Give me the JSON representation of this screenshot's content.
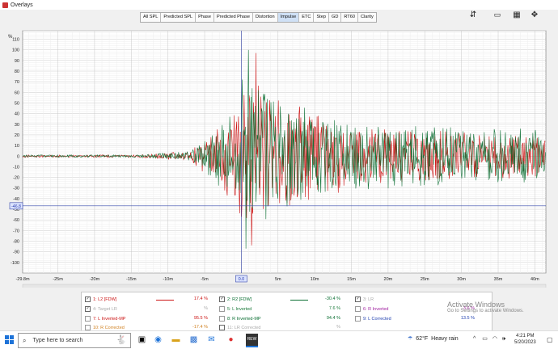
{
  "window": {
    "title": "Overlays"
  },
  "tabs": [
    {
      "label": "All SPL",
      "active": false
    },
    {
      "label": "Predicted SPL",
      "active": false
    },
    {
      "label": "Phase",
      "active": false
    },
    {
      "label": "Predicted Phase",
      "active": false
    },
    {
      "label": "Distortion",
      "active": false
    },
    {
      "label": "Impulse",
      "active": true
    },
    {
      "label": "ETC",
      "active": false
    },
    {
      "label": "Step",
      "active": false
    },
    {
      "label": "GD",
      "active": false
    },
    {
      "label": "RT60",
      "active": false
    },
    {
      "label": "Clarity",
      "active": false
    }
  ],
  "toolbar_icons": [
    "vertical-scale-icon",
    "level-meter-icon",
    "grid-icon",
    "crosshair-icon"
  ],
  "chart_data": {
    "type": "line",
    "ylabel": "%",
    "xlim": [
      -29.8,
      41.5
    ],
    "ylim": [
      -110,
      118
    ],
    "yticks": [
      110,
      100,
      90,
      80,
      70,
      60,
      50,
      40,
      30,
      20,
      10,
      0,
      -10,
      -20,
      -30,
      -40,
      -50,
      -60,
      -70,
      -80,
      -90,
      -100
    ],
    "xticks": [
      {
        "v": -29.8,
        "label": "-29.8m"
      },
      {
        "v": -25,
        "label": "-25m"
      },
      {
        "v": -20,
        "label": "-20m"
      },
      {
        "v": -15,
        "label": "-15m"
      },
      {
        "v": -10,
        "label": "-10m"
      },
      {
        "v": -5,
        "label": "-5m"
      },
      {
        "v": 0,
        "label": "0.0"
      },
      {
        "v": 5,
        "label": "5m"
      },
      {
        "v": 10,
        "label": "10m"
      },
      {
        "v": 15,
        "label": "15m"
      },
      {
        "v": 20,
        "label": "20m"
      },
      {
        "v": 25,
        "label": "25m"
      },
      {
        "v": 30,
        "label": "30m"
      },
      {
        "v": 35,
        "label": "35m"
      },
      {
        "v": 40,
        "label": "40m"
      }
    ],
    "cursor": {
      "x": 0,
      "y": -46.8,
      "y_label": "-46.8"
    },
    "grid": true,
    "series": [
      {
        "name": "1: L2 [FDW]",
        "color": "#cc1414",
        "seed": 7,
        "peak": 97,
        "trough": -84,
        "tail": 27
      },
      {
        "name": "2: R2 [FDW]",
        "color": "#0a6e32",
        "seed": 13,
        "peak": 100,
        "trough": -87,
        "tail": 32
      }
    ]
  },
  "legend": {
    "rows": [
      {
        "check": true,
        "name": "1: L2 [FDW]",
        "color": "#cc1414",
        "pct": "17.4 %",
        "line": true,
        "pct_color": "#cc1414"
      },
      {
        "check": true,
        "name": "2: R2 [FDW]",
        "color": "#0a6e32",
        "pct": "-30.4 %",
        "line": true,
        "pct_color": "#0a6e32"
      },
      {
        "check": true,
        "name": "3: LR",
        "color": "#aaaaaa",
        "pct": "",
        "line": false,
        "pct_color": "#aaaaaa"
      },
      {
        "check": true,
        "name": "4: Target LR",
        "color": "#aaaaaa",
        "pct": "%",
        "line": false,
        "pct_color": "#aaaaaa"
      },
      {
        "check": false,
        "name": "5: L Inverted",
        "color": "#1a7a3a",
        "pct": "7.6 %",
        "line": false,
        "pct_color": "#1a7a3a"
      },
      {
        "check": false,
        "name": "6: R Inverted",
        "color": "#a020a0",
        "pct": "-3.6 %",
        "line": false,
        "pct_color": "#a020a0"
      },
      {
        "check": false,
        "name": "7: L Inverted-MP",
        "color": "#cc1414",
        "pct": "95.5 %",
        "line": false,
        "pct_color": "#cc1414"
      },
      {
        "check": false,
        "name": "8: R Inverted-MP",
        "color": "#0a6e32",
        "pct": "94.4 %",
        "line": false,
        "pct_color": "#0a6e32"
      },
      {
        "check": false,
        "name": "9: L Corrected",
        "color": "#2040b0",
        "pct": "13.5 %",
        "line": false,
        "pct_color": "#2040b0"
      },
      {
        "check": false,
        "name": "10: R Corrected",
        "color": "#d08020",
        "pct": "-17.4 %",
        "line": false,
        "pct_color": "#d08020"
      },
      {
        "check": false,
        "name": "11: LR Corrected",
        "color": "#aaaaaa",
        "pct": "%",
        "line": false,
        "pct_color": "#aaaaaa"
      }
    ]
  },
  "watermark": {
    "line1": "Activate Windows",
    "line2": "Go to Settings to activate Windows."
  },
  "taskbar": {
    "search_placeholder": "Type here to search",
    "weather_temp": "62°F",
    "weather_text": "Heavy rain",
    "time": "4:21 PM",
    "date": "5/20/2023"
  }
}
